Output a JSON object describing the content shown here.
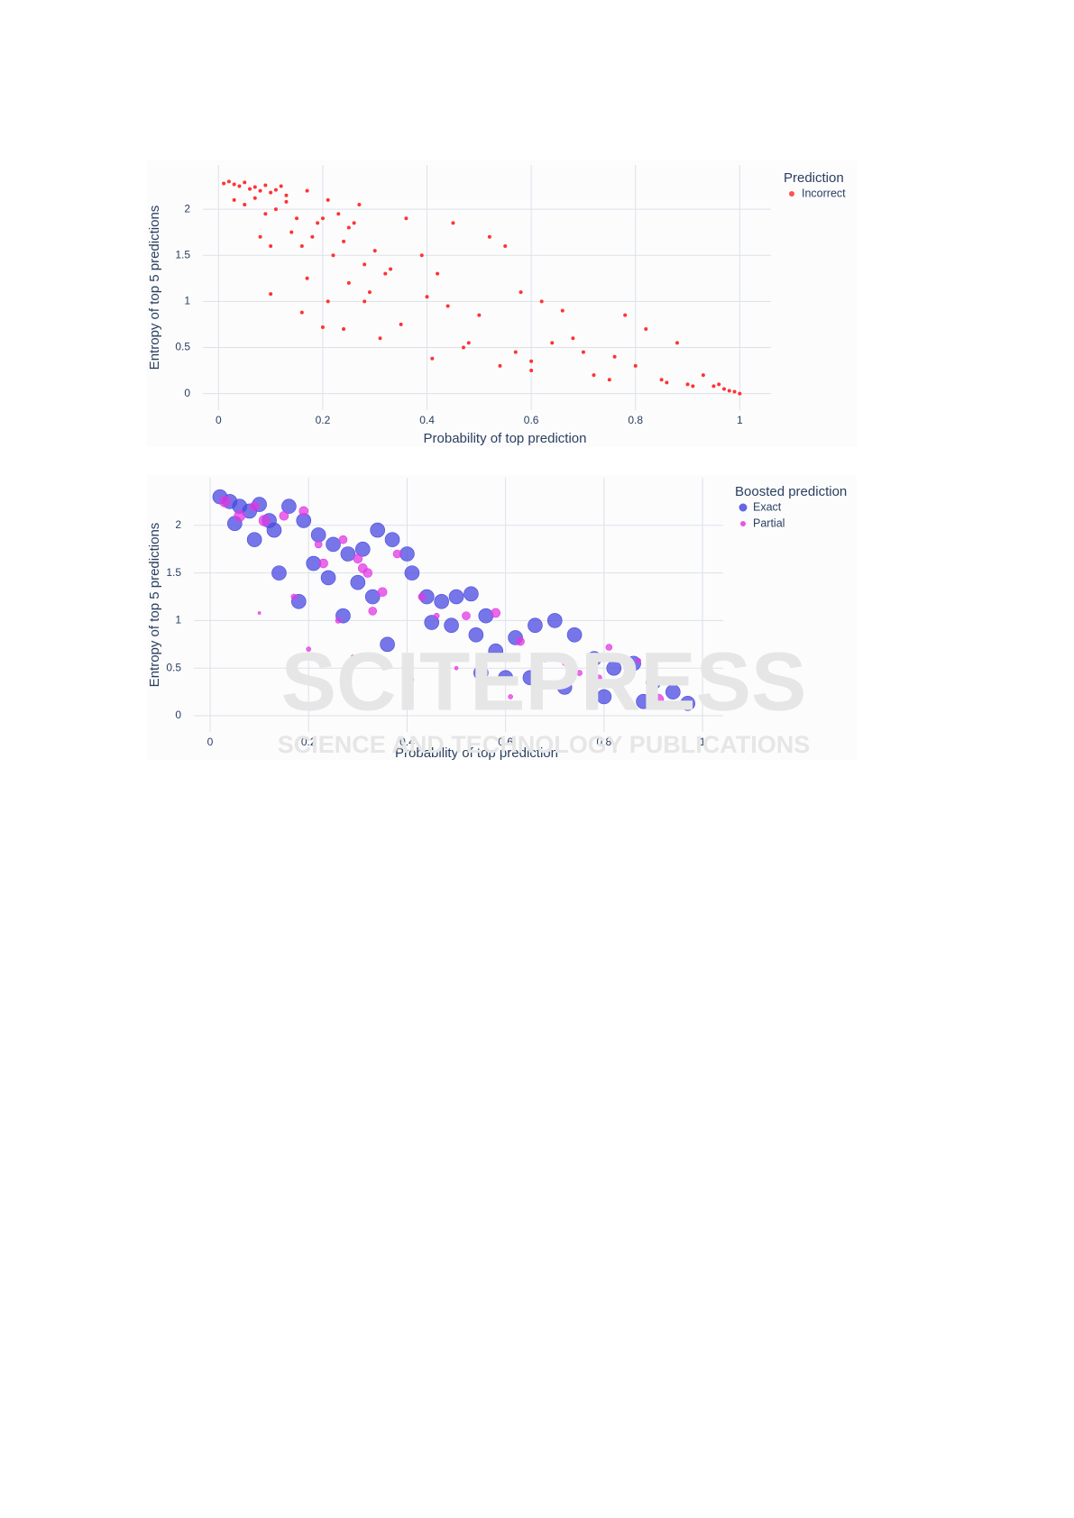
{
  "chart_data": [
    {
      "type": "scatter",
      "xlabel": "Probability of top prediction",
      "ylabel": "Entropy of top 5 predictions",
      "legend_title": "Prediction",
      "legend": "top-right",
      "grid": true,
      "xlim": [
        -0.03,
        1.06
      ],
      "ylim": [
        -0.18,
        2.48
      ],
      "xticks": [
        0,
        0.2,
        0.4,
        0.6,
        0.8,
        1
      ],
      "yticks": [
        0,
        0.5,
        1,
        1.5,
        2
      ],
      "series": [
        {
          "name": "Incorrect",
          "color": "#ff3333",
          "x": [
            0.01,
            0.02,
            0.03,
            0.04,
            0.05,
            0.06,
            0.07,
            0.08,
            0.09,
            0.1,
            0.11,
            0.12,
            0.13,
            0.03,
            0.05,
            0.07,
            0.09,
            0.11,
            0.13,
            0.15,
            0.17,
            0.19,
            0.21,
            0.23,
            0.25,
            0.27,
            0.14,
            0.16,
            0.18,
            0.2,
            0.22,
            0.24,
            0.26,
            0.28,
            0.3,
            0.32,
            0.08,
            0.1,
            0.17,
            0.21,
            0.25,
            0.29,
            0.33,
            0.36,
            0.39,
            0.42,
            0.45,
            0.31,
            0.35,
            0.4,
            0.44,
            0.48,
            0.52,
            0.55,
            0.58,
            0.62,
            0.66,
            0.41,
            0.47,
            0.5,
            0.54,
            0.57,
            0.6,
            0.64,
            0.68,
            0.72,
            0.76,
            0.78,
            0.8,
            0.82,
            0.85,
            0.88,
            0.9,
            0.93,
            0.95,
            0.97,
            0.98,
            0.99,
            1.0,
            0.6,
            0.7,
            0.75,
            0.86,
            0.91,
            0.96,
            0.1,
            0.16,
            0.2,
            0.24,
            0.28
          ],
          "values": [
            2.28,
            2.3,
            2.27,
            2.25,
            2.29,
            2.22,
            2.24,
            2.2,
            2.26,
            2.18,
            2.21,
            2.25,
            2.15,
            2.1,
            2.05,
            2.12,
            1.95,
            2.0,
            2.08,
            1.9,
            2.2,
            1.85,
            2.1,
            1.95,
            1.8,
            2.05,
            1.75,
            1.6,
            1.7,
            1.9,
            1.5,
            1.65,
            1.85,
            1.4,
            1.55,
            1.3,
            1.7,
            1.6,
            1.25,
            1.0,
            1.2,
            1.1,
            1.35,
            1.9,
            1.5,
            1.3,
            1.85,
            0.6,
            0.75,
            1.05,
            0.95,
            0.55,
            1.7,
            1.6,
            1.1,
            1.0,
            0.9,
            0.38,
            0.5,
            0.85,
            0.3,
            0.45,
            0.35,
            0.55,
            0.6,
            0.2,
            0.4,
            0.85,
            0.3,
            0.7,
            0.15,
            0.55,
            0.1,
            0.2,
            0.08,
            0.05,
            0.03,
            0.02,
            0.0,
            0.25,
            0.45,
            0.15,
            0.12,
            0.08,
            0.1,
            1.08,
            0.88,
            0.72,
            0.7,
            1.0
          ]
        }
      ]
    },
    {
      "type": "bubble",
      "xlabel": "Probability of top prediction",
      "ylabel": "Entropy of top 5 predictions",
      "legend_title": "Boosted prediction",
      "legend": "top-right",
      "grid": true,
      "xlim": [
        -0.033,
        1.042
      ],
      "ylim": [
        -0.17,
        2.5
      ],
      "xticks": [
        0,
        0.2,
        0.4,
        0.6,
        0.8,
        1
      ],
      "yticks": [
        0,
        0.5,
        1,
        1.5,
        2
      ],
      "series": [
        {
          "name": "Exact",
          "color": "#4a4ae0",
          "size": 16,
          "x": [
            0.02,
            0.04,
            0.06,
            0.08,
            0.1,
            0.12,
            0.05,
            0.09,
            0.13,
            0.16,
            0.19,
            0.22,
            0.25,
            0.28,
            0.31,
            0.34,
            0.37,
            0.4,
            0.14,
            0.18,
            0.21,
            0.24,
            0.27,
            0.3,
            0.33,
            0.36,
            0.41,
            0.44,
            0.47,
            0.5,
            0.53,
            0.56,
            0.45,
            0.49,
            0.54,
            0.58,
            0.62,
            0.66,
            0.7,
            0.74,
            0.78,
            0.82,
            0.86,
            0.9,
            0.94,
            0.97,
            0.55,
            0.6,
            0.65,
            0.72,
            0.8,
            0.88
          ],
          "values": [
            2.3,
            2.25,
            2.2,
            2.15,
            2.22,
            2.05,
            2.02,
            1.85,
            1.95,
            2.2,
            2.05,
            1.9,
            1.8,
            1.7,
            1.75,
            1.95,
            1.85,
            1.7,
            1.5,
            1.2,
            1.6,
            1.45,
            1.05,
            1.4,
            1.25,
            0.75,
            1.5,
            1.25,
            1.2,
            1.25,
            1.28,
            1.05,
            0.98,
            0.95,
            0.85,
            0.68,
            0.82,
            0.95,
            1.0,
            0.85,
            0.6,
            0.5,
            0.55,
            0.35,
            0.25,
            0.13,
            0.45,
            0.4,
            0.4,
            0.3,
            0.2,
            0.15
          ]
        },
        {
          "name": "Partial",
          "color": "#e23ae2",
          "x": [
            0.03,
            0.06,
            0.09,
            0.11,
            0.15,
            0.19,
            0.23,
            0.27,
            0.31,
            0.35,
            0.38,
            0.17,
            0.22,
            0.26,
            0.3,
            0.33,
            0.1,
            0.2,
            0.29,
            0.43,
            0.46,
            0.52,
            0.58,
            0.63,
            0.68,
            0.75,
            0.81,
            0.87,
            0.91,
            0.5,
            0.56,
            0.61,
            0.66,
            0.72,
            0.79,
            0.32,
            0.41,
            0.48
          ],
          "values": [
            2.25,
            2.1,
            2.2,
            2.05,
            2.1,
            2.15,
            1.6,
            1.85,
            1.55,
            1.3,
            1.7,
            1.25,
            1.8,
            1.0,
            1.65,
            1.1,
            1.08,
            0.7,
            0.62,
            1.25,
            1.05,
            1.05,
            1.08,
            0.78,
            0.6,
            0.45,
            0.72,
            0.58,
            0.17,
            0.5,
            0.35,
            0.2,
            0.15,
            0.55,
            0.4,
            1.5,
            0.38,
            0.55
          ],
          "sizes": [
            12,
            12,
            10,
            12,
            10,
            10,
            10,
            9,
            10,
            10,
            9,
            6,
            8,
            6,
            10,
            9,
            3,
            5,
            4,
            8,
            6,
            9,
            10,
            9,
            7,
            6,
            7,
            5,
            12,
            4,
            6,
            5,
            4,
            5,
            6,
            10,
            4,
            4
          ]
        }
      ]
    }
  ],
  "watermark": {
    "brand": "SCITEPRESS",
    "tagline": "SCIENCE AND TECHNOLOGY PUBLICATIONS"
  }
}
